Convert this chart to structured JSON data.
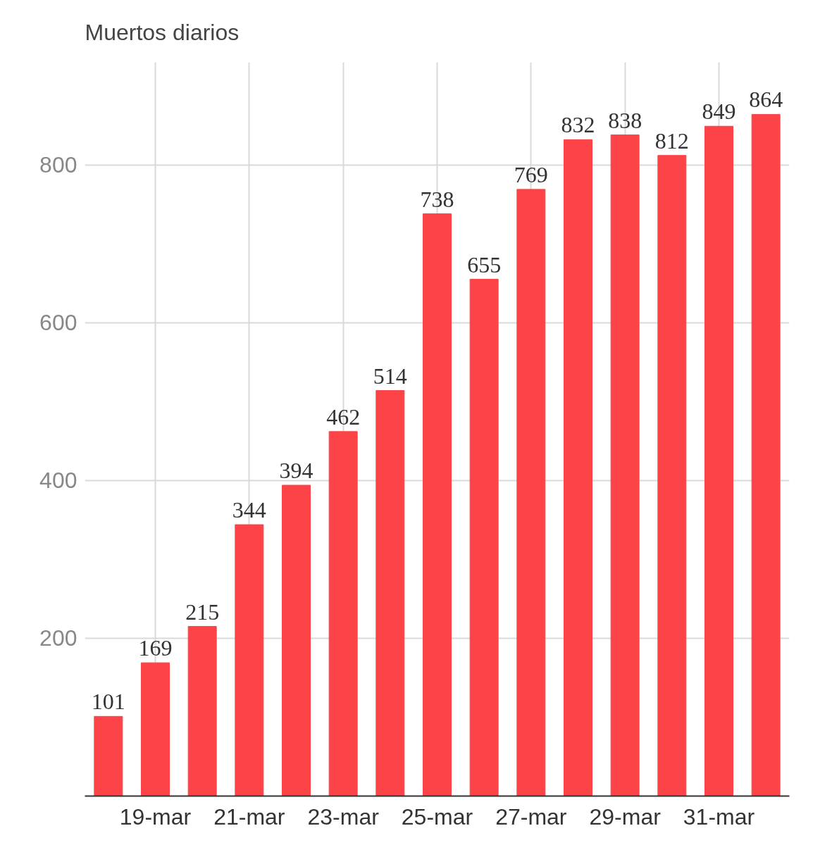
{
  "chart_data": {
    "type": "bar",
    "title": "Muertos diarios",
    "categories": [
      null,
      "19-mar",
      null,
      "21-mar",
      null,
      "23-mar",
      null,
      "25-mar",
      null,
      "27-mar",
      null,
      "29-mar",
      null,
      "31-mar",
      null
    ],
    "values": [
      101,
      169,
      215,
      344,
      394,
      462,
      514,
      738,
      655,
      769,
      832,
      838,
      812,
      849,
      864
    ],
    "color": "#fc4347",
    "ylim": [
      0,
      930
    ],
    "yticks": [
      200,
      400,
      600,
      800
    ],
    "grid": true,
    "data_labels": true
  }
}
